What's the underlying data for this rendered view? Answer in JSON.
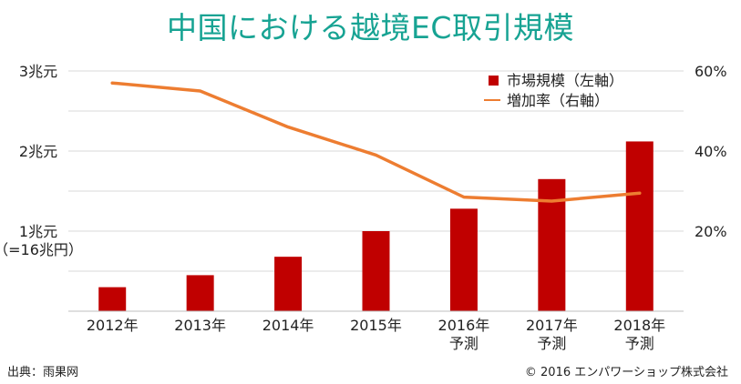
{
  "title": "中国における越境EC取引規模",
  "footer": {
    "source": "出典：雨果网",
    "copyright": "© 2016 エンパワーショップ株式会社"
  },
  "colors": {
    "bar": "#c00000",
    "line": "#ed7d31",
    "title": "#17a393",
    "grid": "#d9d9d9"
  },
  "chart_data": {
    "type": "bar",
    "categories": [
      [
        "2012年"
      ],
      [
        "2013年"
      ],
      [
        "2014年"
      ],
      [
        "2015年"
      ],
      [
        "2016年",
        "予測"
      ],
      [
        "2017年",
        "予測"
      ],
      [
        "2018年",
        "予測"
      ]
    ],
    "series": [
      {
        "name": "市場規模（左軸）",
        "type": "bar",
        "axis": "left",
        "values": [
          0.3,
          0.45,
          0.68,
          1.0,
          1.28,
          1.65,
          2.12
        ]
      },
      {
        "name": "増加率（右軸）",
        "type": "line",
        "axis": "right",
        "values": [
          57,
          55,
          46,
          39,
          28.5,
          27.5,
          29.5
        ]
      }
    ],
    "y_left": {
      "range": [
        0,
        3
      ],
      "ticks": [
        {
          "value": 3,
          "label": [
            "3兆元"
          ]
        },
        {
          "value": 2,
          "label": [
            "2兆元"
          ]
        },
        {
          "value": 1,
          "label": [
            "1兆元",
            "（=16兆円）"
          ]
        }
      ]
    },
    "y_right": {
      "range": [
        0,
        60
      ],
      "ticks": [
        {
          "value": 60,
          "label": "60%"
        },
        {
          "value": 40,
          "label": "40%"
        },
        {
          "value": 20,
          "label": "20%"
        }
      ]
    },
    "grid": true,
    "legend": "top-right"
  }
}
